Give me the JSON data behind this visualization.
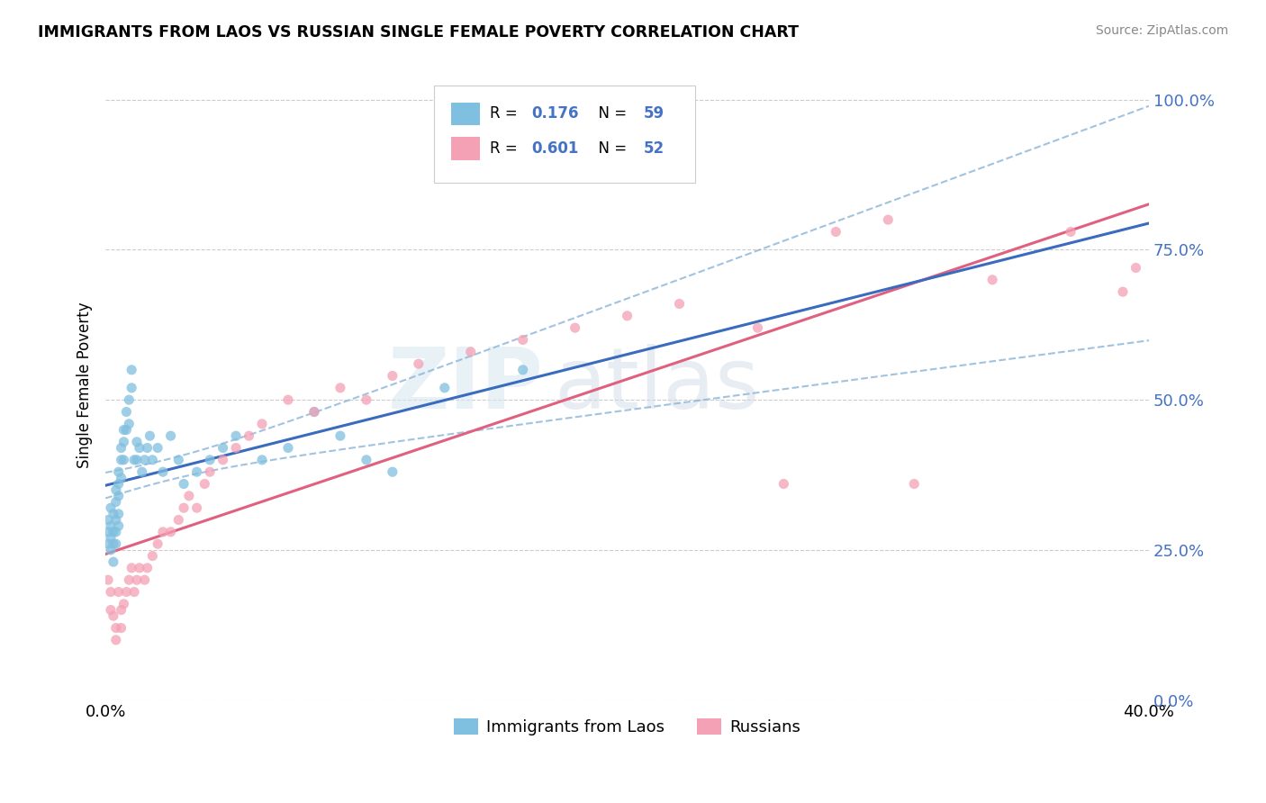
{
  "title": "IMMIGRANTS FROM LAOS VS RUSSIAN SINGLE FEMALE POVERTY CORRELATION CHART",
  "source": "Source: ZipAtlas.com",
  "ylabel": "Single Female Poverty",
  "yticks": [
    "0.0%",
    "25.0%",
    "50.0%",
    "75.0%",
    "100.0%"
  ],
  "ytick_vals": [
    0.0,
    0.25,
    0.5,
    0.75,
    1.0
  ],
  "xmin": 0.0,
  "xmax": 0.4,
  "ymin": 0.0,
  "ymax": 1.05,
  "color_laos": "#7fbfdf",
  "color_russian": "#f4a0b5",
  "color_laos_line": "#3a6bbf",
  "color_russian_line": "#e06080",
  "color_ci": "#8ab4d8",
  "watermark_zip": "ZIP",
  "watermark_atlas": "atlas",
  "laos_x": [
    0.001,
    0.001,
    0.001,
    0.002,
    0.002,
    0.002,
    0.002,
    0.003,
    0.003,
    0.003,
    0.003,
    0.004,
    0.004,
    0.004,
    0.004,
    0.004,
    0.005,
    0.005,
    0.005,
    0.005,
    0.005,
    0.006,
    0.006,
    0.006,
    0.007,
    0.007,
    0.007,
    0.008,
    0.008,
    0.009,
    0.009,
    0.01,
    0.01,
    0.011,
    0.012,
    0.012,
    0.013,
    0.014,
    0.015,
    0.016,
    0.017,
    0.018,
    0.02,
    0.022,
    0.025,
    0.028,
    0.03,
    0.035,
    0.04,
    0.045,
    0.05,
    0.06,
    0.07,
    0.08,
    0.09,
    0.1,
    0.11,
    0.13,
    0.16
  ],
  "laos_y": [
    0.3,
    0.28,
    0.26,
    0.32,
    0.29,
    0.27,
    0.25,
    0.31,
    0.28,
    0.26,
    0.23,
    0.35,
    0.33,
    0.3,
    0.28,
    0.26,
    0.38,
    0.36,
    0.34,
    0.31,
    0.29,
    0.42,
    0.4,
    0.37,
    0.45,
    0.43,
    0.4,
    0.48,
    0.45,
    0.5,
    0.46,
    0.55,
    0.52,
    0.4,
    0.43,
    0.4,
    0.42,
    0.38,
    0.4,
    0.42,
    0.44,
    0.4,
    0.42,
    0.38,
    0.44,
    0.4,
    0.36,
    0.38,
    0.4,
    0.42,
    0.44,
    0.4,
    0.42,
    0.48,
    0.44,
    0.4,
    0.38,
    0.52,
    0.55
  ],
  "russian_x": [
    0.001,
    0.002,
    0.002,
    0.003,
    0.004,
    0.004,
    0.005,
    0.006,
    0.006,
    0.007,
    0.008,
    0.009,
    0.01,
    0.011,
    0.012,
    0.013,
    0.015,
    0.016,
    0.018,
    0.02,
    0.022,
    0.025,
    0.028,
    0.03,
    0.032,
    0.035,
    0.038,
    0.04,
    0.045,
    0.05,
    0.055,
    0.06,
    0.07,
    0.08,
    0.09,
    0.1,
    0.11,
    0.12,
    0.14,
    0.16,
    0.18,
    0.2,
    0.22,
    0.25,
    0.28,
    0.3,
    0.34,
    0.37,
    0.39,
    0.395,
    0.26,
    0.31
  ],
  "russian_y": [
    0.2,
    0.18,
    0.15,
    0.14,
    0.12,
    0.1,
    0.18,
    0.15,
    0.12,
    0.16,
    0.18,
    0.2,
    0.22,
    0.18,
    0.2,
    0.22,
    0.2,
    0.22,
    0.24,
    0.26,
    0.28,
    0.28,
    0.3,
    0.32,
    0.34,
    0.32,
    0.36,
    0.38,
    0.4,
    0.42,
    0.44,
    0.46,
    0.5,
    0.48,
    0.52,
    0.5,
    0.54,
    0.56,
    0.58,
    0.6,
    0.62,
    0.64,
    0.66,
    0.62,
    0.78,
    0.8,
    0.7,
    0.78,
    0.68,
    0.72,
    0.36,
    0.36
  ]
}
